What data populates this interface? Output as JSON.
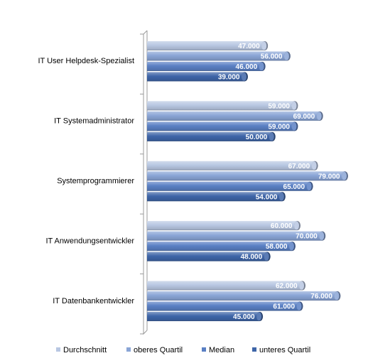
{
  "chart_data": {
    "type": "bar",
    "orientation": "horizontal",
    "three_d": true,
    "categories": [
      "IT User Helpdesk-Spezialist",
      "IT Systemadministrator",
      "Systemprogrammierer",
      "IT Anwendungsentwickler",
      "IT Datenbankentwickler"
    ],
    "series": [
      {
        "name": "Durchschnitt",
        "color": "#b8c7e2",
        "values": [
          47000,
          59000,
          67000,
          60000,
          62000
        ],
        "labels": [
          "47.000",
          "59.000",
          "67.000",
          "60.000",
          "62.000"
        ]
      },
      {
        "name": "oberes Quartil",
        "color": "#8aa5d6",
        "values": [
          56000,
          69000,
          79000,
          70000,
          76000
        ],
        "labels": [
          "56.000",
          "69.000",
          "79.000",
          "70.000",
          "76.000"
        ]
      },
      {
        "name": "Median",
        "color": "#5a80c4",
        "values": [
          46000,
          59000,
          65000,
          58000,
          61000
        ],
        "labels": [
          "46.000",
          "59.000",
          "65.000",
          "58.000",
          "61.000"
        ]
      },
      {
        "name": "unteres Quartil",
        "color": "#3e65a8",
        "values": [
          39000,
          50000,
          54000,
          48000,
          45000
        ],
        "labels": [
          "39.000",
          "50.000",
          "54.000",
          "48.000",
          "45.000"
        ]
      }
    ],
    "xlim": [
      0,
      80000
    ],
    "grid": false,
    "legend_position": "bottom"
  }
}
